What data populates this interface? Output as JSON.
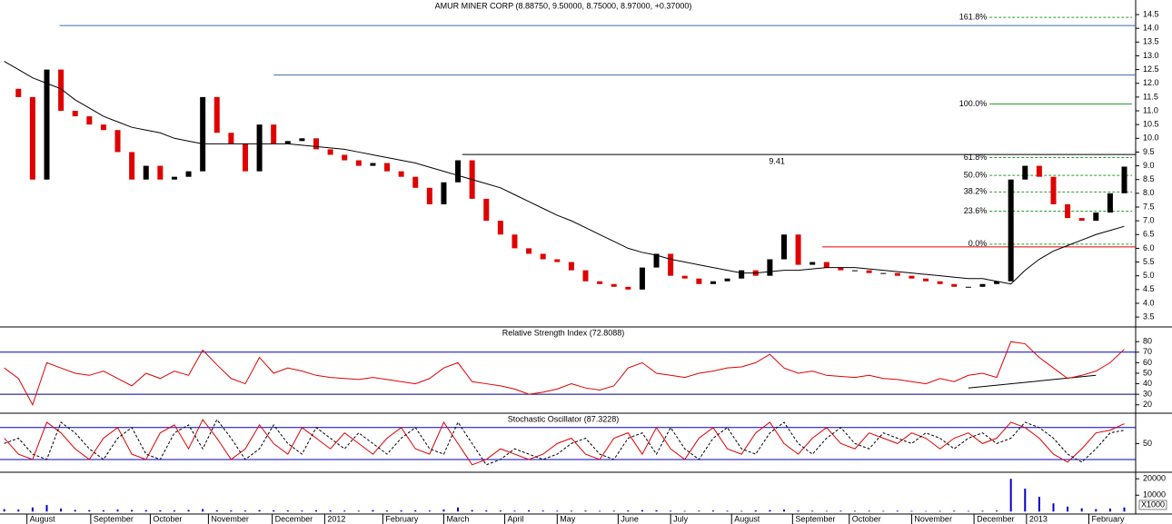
{
  "chart_data": [
    {
      "type": "candlestick",
      "title": "AMUR MINER CORP (8.88750, 9.50000, 8.75000, 8.97000, +0.37000)",
      "xlim": [
        -0.3,
        79.8
      ],
      "ylim": [
        3.14,
        15.03
      ],
      "yticks": [
        3.5,
        {
          "value": 4,
          "label": "4.0"
        },
        4.5,
        {
          "value": 5,
          "label": "5.0"
        },
        5.5,
        {
          "value": 6,
          "label": "6.0"
        },
        6.5,
        {
          "value": 7,
          "label": "7.0"
        },
        7.5,
        {
          "value": 8,
          "label": "8.0"
        },
        8.5,
        {
          "value": 9,
          "label": "9.0"
        },
        9.5,
        {
          "value": 10,
          "label": "10.0"
        },
        10.5,
        {
          "value": 11,
          "label": "11.0"
        },
        11.5,
        {
          "value": 12,
          "label": "12.0"
        },
        12.5,
        {
          "value": 13,
          "label": "13.0"
        },
        13.5,
        {
          "value": 14,
          "label": "14.0"
        },
        14.5
      ],
      "up_color": "#000000",
      "down_color": "#e00000",
      "close": [
        11.8,
        11.5,
        8.5,
        12.5,
        11.0,
        10.8,
        10.5,
        10.3,
        9.5,
        8.5,
        9.0,
        8.5,
        8.6,
        8.8,
        11.5,
        10.2,
        9.8,
        8.8,
        10.5,
        9.8,
        9.9,
        10.0,
        9.6,
        9.4,
        9.2,
        9.0,
        9.1,
        8.8,
        8.6,
        8.2,
        7.6,
        8.4,
        9.2,
        7.8,
        7.0,
        6.5,
        6.0,
        5.8,
        5.6,
        5.5,
        5.2,
        4.8,
        4.7,
        4.6,
        4.5,
        5.3,
        5.8,
        5.0,
        4.9,
        4.7,
        4.8,
        4.9,
        5.2,
        5.0,
        5.6,
        6.5,
        5.4,
        5.5,
        5.3,
        5.2,
        5.2,
        5.1,
        5.1,
        5.0,
        4.9,
        4.8,
        4.7,
        4.6,
        4.6,
        4.7,
        4.8,
        8.5,
        9.0,
        8.6,
        7.6,
        7.1,
        7.0,
        7.3,
        8.0,
        8.97
      ],
      "series": [
        {
          "color": "#000000",
          "values": [
            12.8,
            12.5,
            12.2,
            12.0,
            11.8,
            11.4,
            11.1,
            10.8,
            10.6,
            10.4,
            10.3,
            10.2,
            10.0,
            9.9,
            9.8,
            9.8,
            9.8,
            9.8,
            9.8,
            9.8,
            9.8,
            9.75,
            9.7,
            9.65,
            9.6,
            9.5,
            9.4,
            9.3,
            9.2,
            9.1,
            8.95,
            8.8,
            8.65,
            8.5,
            8.35,
            8.2,
            7.95,
            7.7,
            7.45,
            7.2,
            7.0,
            6.75,
            6.5,
            6.25,
            6.0,
            5.85,
            5.75,
            5.6,
            5.5,
            5.4,
            5.3,
            5.2,
            5.1,
            5.1,
            5.15,
            5.2,
            5.2,
            5.25,
            5.3,
            5.3,
            5.3,
            5.25,
            5.2,
            5.15,
            5.1,
            5.05,
            5.0,
            4.95,
            4.9,
            4.9,
            4.8,
            4.7,
            5.2,
            5.6,
            5.9,
            6.1,
            6.3,
            6.5,
            6.65,
            6.8
          ]
        }
      ],
      "reference_lines": [
        {
          "value": 14.1,
          "from": 3.9,
          "color": "#3a6ea5"
        },
        {
          "value": 12.3,
          "from": 19,
          "color": "#3a6ea5"
        },
        {
          "value": 9.41,
          "from": 32.3,
          "color": "#000000"
        },
        {
          "value": 6.05,
          "from": 57.7,
          "color": "#e00000"
        }
      ],
      "fib_levels": [
        {
          "label": "161.8%",
          "value": 14.4,
          "from": 69.5,
          "dashed": true
        },
        {
          "label": "100.0%",
          "value": 11.25,
          "from": 69.5,
          "dashed": false
        },
        {
          "label": "61.8%",
          "value": 9.3,
          "from": 69.5,
          "dashed": true
        },
        {
          "label": "50.0%",
          "value": 8.65,
          "from": 69.5,
          "dashed": true
        },
        {
          "label": "38.2%",
          "value": 8.05,
          "from": 69.5,
          "dashed": true
        },
        {
          "label": "23.6%",
          "value": 7.35,
          "from": 69.5,
          "dashed": true
        },
        {
          "label": "0.0%",
          "value": 6.15,
          "from": 69.5,
          "dashed": true
        }
      ],
      "fib_color": "#2e9b2e",
      "annotations": [
        {
          "text": "9.41",
          "x": 54.5,
          "y": 9.15
        }
      ]
    },
    {
      "type": "line",
      "title": "Relative Strength Index (72.8088)",
      "xlim": [
        -0.3,
        79.8
      ],
      "ylim": [
        12,
        94
      ],
      "yticks": [
        20,
        30,
        40,
        50,
        60,
        70,
        80
      ],
      "levels": [
        {
          "value": 70,
          "color": "#0000cc"
        },
        {
          "value": 30,
          "color": "#000080"
        }
      ],
      "series": [
        {
          "color": "#e00000",
          "values": [
            55,
            45,
            20,
            60,
            55,
            50,
            48,
            52,
            45,
            38,
            50,
            45,
            52,
            48,
            72,
            58,
            45,
            40,
            65,
            50,
            55,
            52,
            48,
            46,
            45,
            44,
            46,
            44,
            42,
            40,
            45,
            55,
            60,
            42,
            40,
            38,
            35,
            30,
            32,
            35,
            40,
            36,
            34,
            38,
            55,
            60,
            50,
            48,
            46,
            50,
            52,
            55,
            56,
            60,
            68,
            55,
            50,
            52,
            48,
            47,
            46,
            48,
            45,
            44,
            42,
            40,
            45,
            42,
            48,
            50,
            46,
            80,
            78,
            65,
            55,
            45,
            48,
            52,
            60,
            72.8
          ]
        }
      ],
      "trendline": {
        "x": [
          68,
          77
        ],
        "y": [
          36,
          48
        ],
        "color": "#000000"
      }
    },
    {
      "type": "line",
      "title": "Stochastic Oscillator (87.3228)",
      "xlim": [
        -0.3,
        79.8
      ],
      "ylim": [
        -4,
        107
      ],
      "yticks": [
        50
      ],
      "levels": [
        {
          "value": 80,
          "color": "#0000cc"
        },
        {
          "value": 20,
          "color": "#0000cc"
        }
      ],
      "series": [
        {
          "color": "#e00000",
          "dashed": false,
          "values": [
            60,
            30,
            20,
            90,
            70,
            40,
            20,
            60,
            80,
            30,
            20,
            70,
            85,
            40,
            95,
            60,
            20,
            40,
            85,
            50,
            30,
            80,
            60,
            40,
            70,
            50,
            30,
            60,
            80,
            40,
            30,
            90,
            50,
            10,
            20,
            40,
            30,
            20,
            30,
            50,
            60,
            30,
            20,
            60,
            70,
            30,
            80,
            40,
            20,
            60,
            80,
            40,
            30,
            70,
            90,
            50,
            30,
            60,
            80,
            50,
            40,
            70,
            60,
            50,
            70,
            60,
            40,
            60,
            70,
            50,
            60,
            90,
            80,
            60,
            30,
            15,
            40,
            70,
            75,
            87.3
          ]
        },
        {
          "color": "#000000",
          "dashed": true,
          "values": [
            50,
            60,
            30,
            20,
            90,
            70,
            40,
            20,
            60,
            80,
            30,
            20,
            70,
            85,
            40,
            95,
            60,
            20,
            40,
            85,
            50,
            30,
            80,
            60,
            40,
            70,
            50,
            30,
            60,
            80,
            40,
            30,
            90,
            50,
            10,
            20,
            40,
            30,
            20,
            30,
            50,
            60,
            30,
            20,
            60,
            70,
            30,
            80,
            40,
            20,
            60,
            80,
            40,
            30,
            70,
            90,
            50,
            30,
            60,
            80,
            50,
            40,
            70,
            60,
            50,
            70,
            60,
            40,
            60,
            70,
            50,
            60,
            90,
            80,
            60,
            30,
            15,
            40,
            70,
            75
          ]
        }
      ]
    },
    {
      "type": "bar",
      "xlim": [
        -0.3,
        79.8
      ],
      "ylim": [
        -1500,
        24000
      ],
      "yticks": [
        10000,
        20000
      ],
      "unit_label": "X1000",
      "color": "#0000cc",
      "values": [
        1500,
        1200,
        2500,
        4000,
        1800,
        1000,
        900,
        800,
        1200,
        1000,
        900,
        800,
        700,
        1000,
        1500,
        800,
        700,
        600,
        900,
        800,
        700,
        600,
        800,
        700,
        600,
        500,
        900,
        600,
        700,
        800,
        600,
        1200,
        2500,
        900,
        700,
        600,
        500,
        800,
        600,
        500,
        500,
        600,
        400,
        500,
        700,
        900,
        800,
        500,
        400,
        500,
        600,
        500,
        400,
        700,
        900,
        1200,
        600,
        500,
        400,
        500,
        400,
        500,
        400,
        500,
        400,
        300,
        400,
        500,
        400,
        500,
        600,
        20000,
        14000,
        9000,
        5000,
        3000,
        2000,
        1500,
        1800,
        2500
      ],
      "xticks": [
        {
          "value": 1.6,
          "label": "August"
        },
        {
          "value": 6.1,
          "label": "September"
        },
        {
          "value": 10.3,
          "label": "October"
        },
        {
          "value": 14.4,
          "label": "November"
        },
        {
          "value": 18.9,
          "label": "December"
        },
        {
          "value": 22.6,
          "label": "2012"
        },
        {
          "value": 26.7,
          "label": "February"
        },
        {
          "value": 31,
          "label": "March"
        },
        {
          "value": 35.3,
          "label": "April"
        },
        {
          "value": 39,
          "label": "May"
        },
        {
          "value": 43.3,
          "label": "June"
        },
        {
          "value": 47,
          "label": "July"
        },
        {
          "value": 51.3,
          "label": "August"
        },
        {
          "value": 55.6,
          "label": "September"
        },
        {
          "value": 59.6,
          "label": "October"
        },
        {
          "value": 64,
          "label": "November"
        },
        {
          "value": 68.4,
          "label": "December"
        },
        {
          "value": 72.1,
          "label": "2013"
        },
        {
          "value": 76.5,
          "label": "February"
        }
      ]
    }
  ]
}
